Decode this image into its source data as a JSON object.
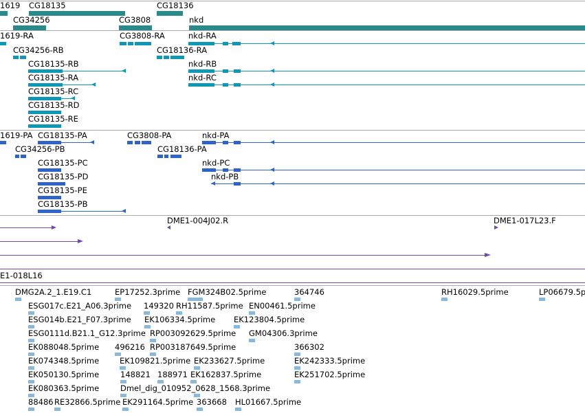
{
  "colors": {
    "gene_track": "#2a8a8a",
    "transcript_track": "#0f97b8",
    "protein_track": "#2f63c8",
    "clone_track": "#6f4aa8",
    "est_track": "#88b8dc",
    "separator": "#a8a8a8"
  },
  "gene_track": {
    "labels": [
      "1619",
      "CG18135",
      "CG18136",
      "CG34256",
      "CG3808",
      "nkd"
    ]
  },
  "transcript_track": {
    "labels": [
      "1619-RA",
      "CG3808-RA",
      "nkd-RA",
      "CG34256-RB",
      "CG18136-RA",
      "CG18135-RB",
      "nkd-RB",
      "CG18135-RA",
      "nkd-RC",
      "CG18135-RC",
      "CG18135-RD",
      "CG18135-RE"
    ]
  },
  "protein_track": {
    "labels": [
      "1619-PA",
      "CG18135-PA",
      "CG3808-PA",
      "nkd-PA",
      "CG34256-PB",
      "CG18136-PA",
      "CG18135-PC",
      "nkd-PC",
      "CG18135-PD",
      "nkd-PB",
      "CG18135-PE",
      "CG18135-PB"
    ]
  },
  "clone_track": {
    "labels": [
      "DME1-004J02.R",
      "DME1-017L23.F",
      "E1-018L16"
    ]
  },
  "est_track": {
    "labels": [
      "DMG2A.2_1.E19.C1",
      "EP17252.3prime",
      "FGM324B02.5prime",
      "364746",
      "RH16029.5prime",
      "LP06679.5p",
      "ESG017c.E21_A06.3prime",
      "149320",
      "RH11587.5prime",
      "EN00461.5prime",
      "ESG014b.E21_F07.3prime",
      "EK106334.5prime",
      "EK123804.5prime",
      "ESG0111d.B21.1_G12.3prime",
      "RP003092629.5prime",
      "GM04306.3prime",
      "EK088048.5prime",
      "496216",
      "RP003187649.5prime",
      "366302",
      "EK074348.5prime",
      "EK109821.5prime",
      "EK233627.5prime",
      "EK242333.5prime",
      "EK050130.5prime",
      "148821",
      "188971",
      "EK162837.5prime",
      "EK251702.5prime",
      "EK080363.5prime",
      "Dmel_dig_010952_0628_1568.3prime",
      "88486",
      "RE32866.5prime",
      "EK291164.5prime",
      "363668",
      "HL01667.5prime"
    ]
  }
}
